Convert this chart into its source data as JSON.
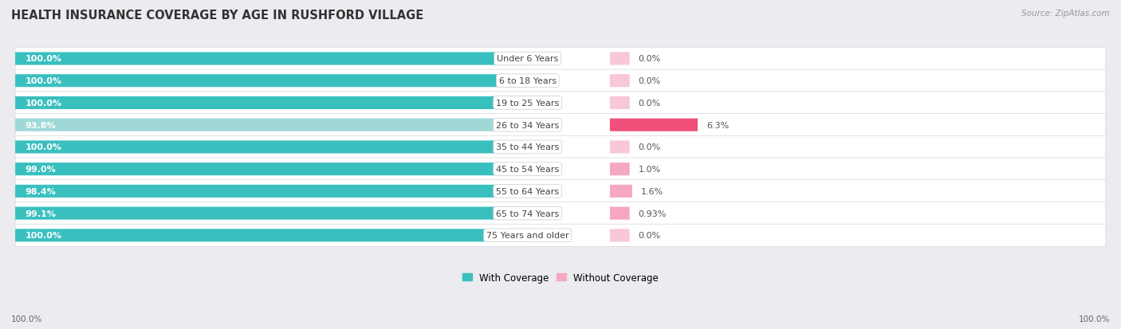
{
  "title": "HEALTH INSURANCE COVERAGE BY AGE IN RUSHFORD VILLAGE",
  "source": "Source: ZipAtlas.com",
  "categories": [
    "Under 6 Years",
    "6 to 18 Years",
    "19 to 25 Years",
    "26 to 34 Years",
    "35 to 44 Years",
    "45 to 54 Years",
    "55 to 64 Years",
    "65 to 74 Years",
    "75 Years and older"
  ],
  "with_coverage": [
    100.0,
    100.0,
    100.0,
    93.8,
    100.0,
    99.0,
    98.4,
    99.1,
    100.0
  ],
  "without_coverage": [
    0.0,
    0.0,
    0.0,
    6.3,
    0.0,
    1.0,
    1.6,
    0.93,
    0.0
  ],
  "with_labels": [
    "100.0%",
    "100.0%",
    "100.0%",
    "93.8%",
    "100.0%",
    "99.0%",
    "98.4%",
    "99.1%",
    "100.0%"
  ],
  "without_labels": [
    "0.0%",
    "0.0%",
    "0.0%",
    "6.3%",
    "0.0%",
    "1.0%",
    "1.6%",
    "0.93%",
    "0.0%"
  ],
  "color_with_full": "#3abfbf",
  "color_with_light": "#a0d8d8",
  "color_without_full": "#f0507a",
  "color_without_light": "#f5a8c0",
  "color_without_zero": "#f8c8d8",
  "bg_color": "#ebebf0",
  "row_bg_light": "#f5f5f8",
  "row_bg_dark": "#eaeaee",
  "title_fontsize": 10.5,
  "label_fontsize": 8,
  "cat_fontsize": 8,
  "legend_fontsize": 8.5,
  "axis_label_fontsize": 7.5
}
